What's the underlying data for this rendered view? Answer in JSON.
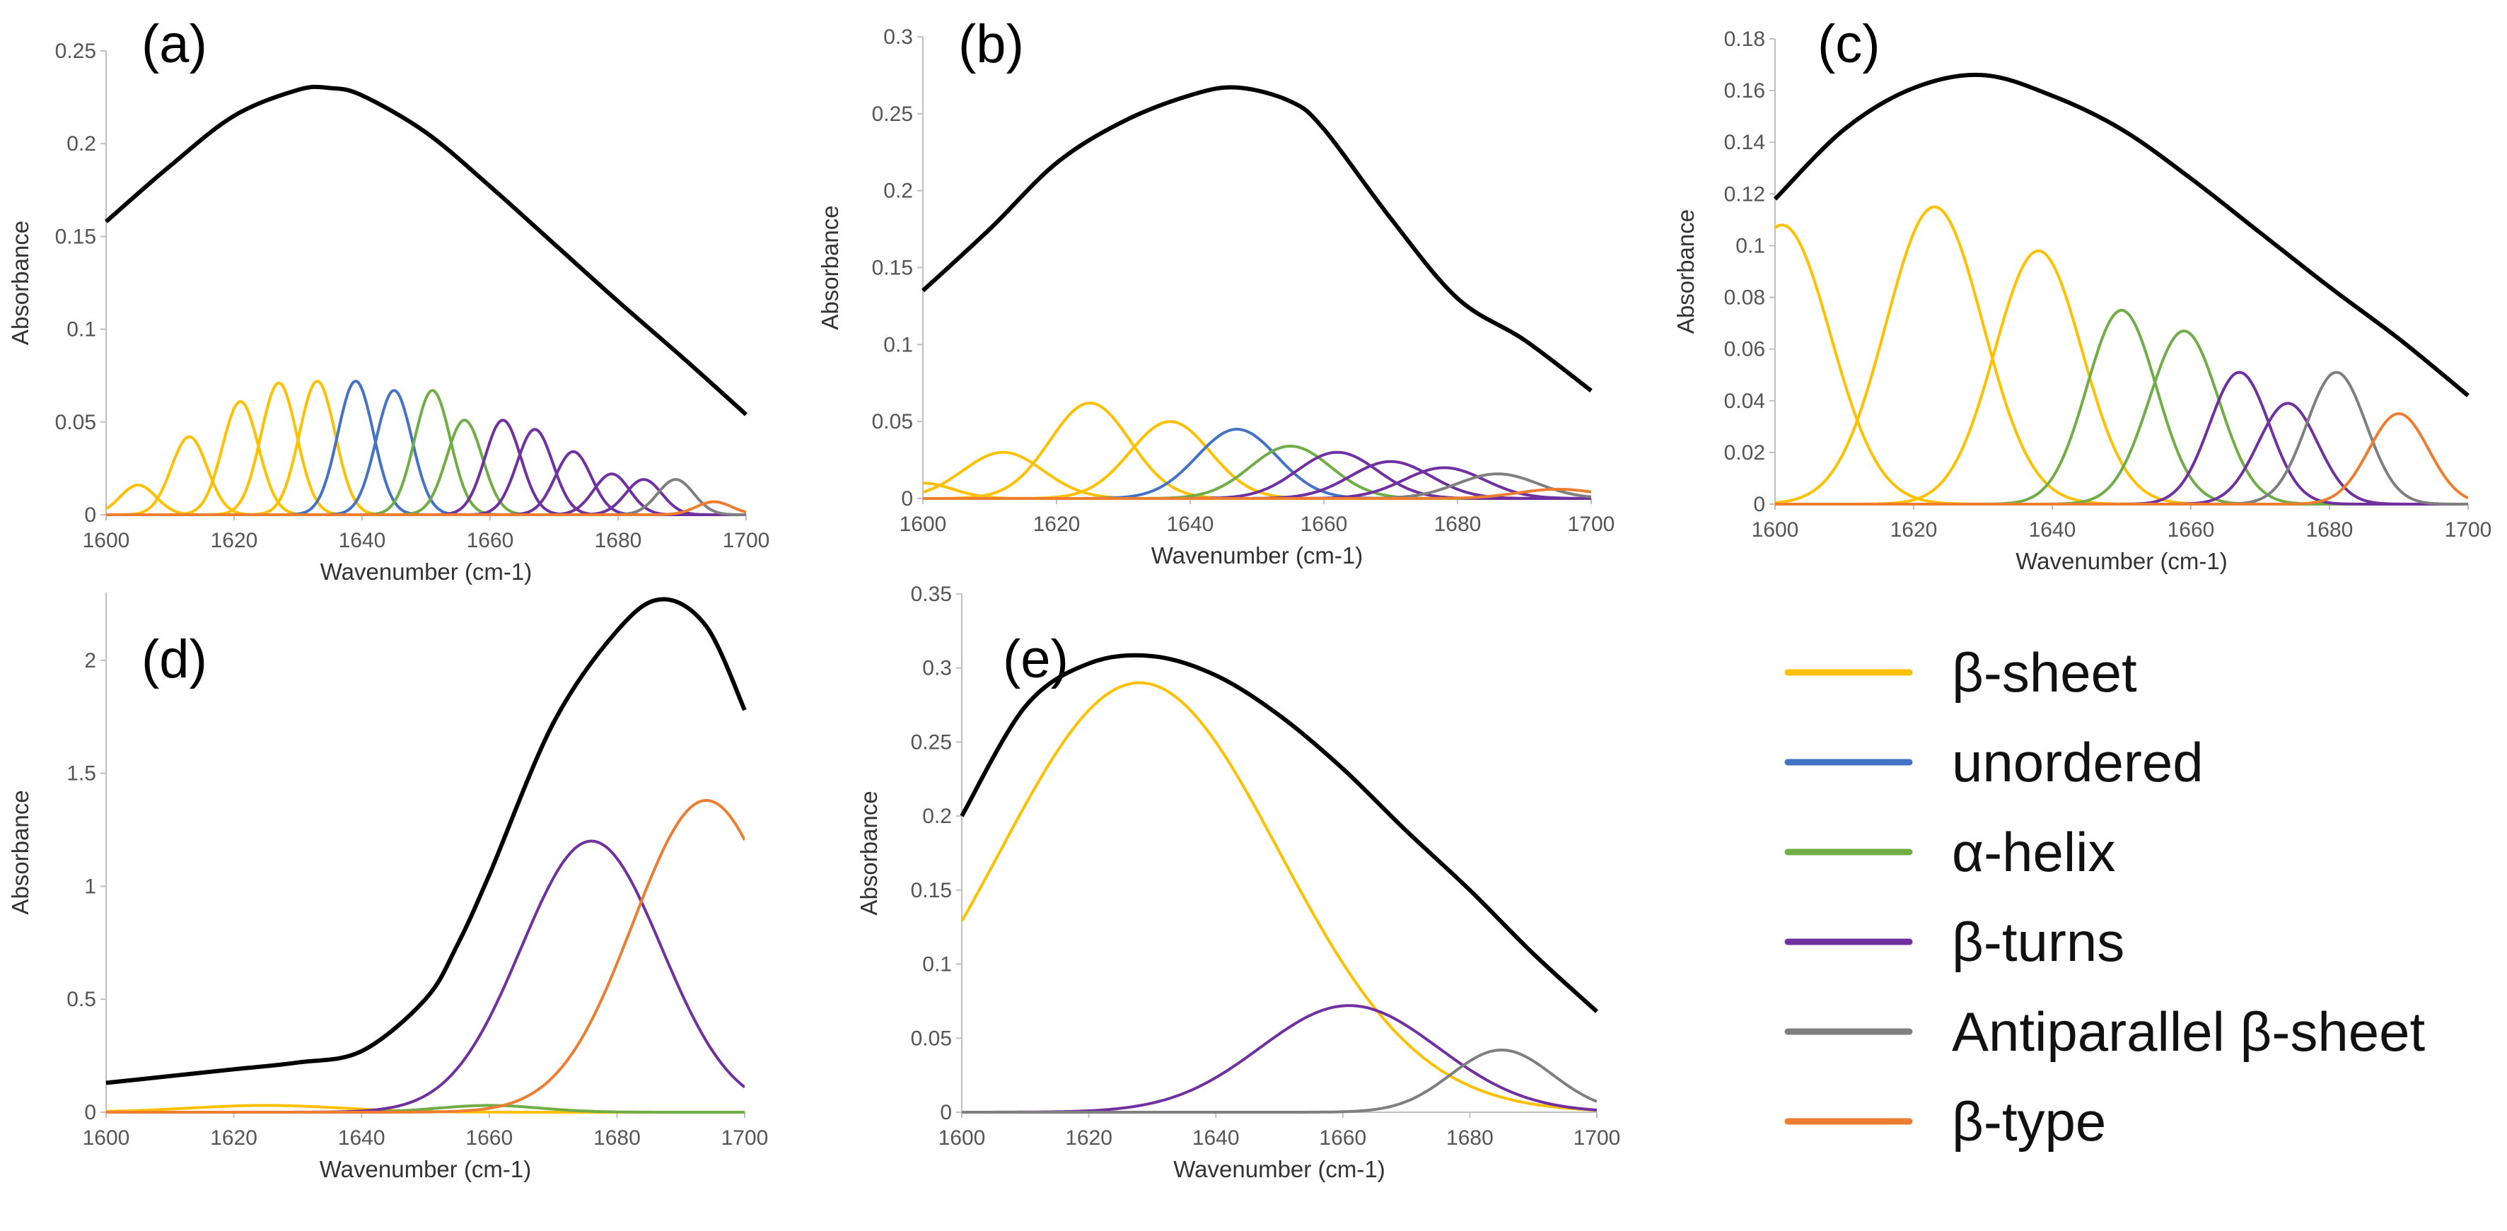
{
  "colors": {
    "beta_sheet": "#FFC000",
    "unordered": "#4472C4",
    "alpha_helix": "#70AD47",
    "beta_turns": "#7030A0",
    "antiparallel": "#7F7F7F",
    "beta_type": "#ED7D31",
    "total": "#000000"
  },
  "legend": {
    "items": [
      {
        "label": "β-sheet",
        "color_key": "beta_sheet"
      },
      {
        "label": "unordered",
        "color_key": "unordered"
      },
      {
        "label": "α-helix",
        "color_key": "alpha_helix"
      },
      {
        "label": "β-turns",
        "color_key": "beta_turns"
      },
      {
        "label": "Antiparallel β-sheet",
        "color_key": "antiparallel"
      },
      {
        "label": "β-type",
        "color_key": "beta_type"
      }
    ]
  },
  "chart_data": [
    {
      "type": "line",
      "panel": "(a)",
      "xlabel": "Wavenumber (cm-1)",
      "ylabel": "Absorbance",
      "xlim": [
        1600,
        1700
      ],
      "ylim": [
        0,
        0.25
      ],
      "xticks": [
        1600,
        1620,
        1640,
        1660,
        1680,
        1700
      ],
      "xtick_labels": [
        "1600",
        "1620",
        "1640",
        "1660",
        "1680",
        "1700"
      ],
      "yticks": [
        0,
        0.05,
        0.1,
        0.15,
        0.2,
        0.25
      ],
      "ytick_labels": [
        "0",
        "0.05",
        "0.1",
        "0.15",
        "0.2",
        "0.25"
      ],
      "total": {
        "x": [
          1600,
          1610,
          1620,
          1630,
          1635,
          1640,
          1650,
          1660,
          1670,
          1680,
          1690,
          1700
        ],
        "y": [
          0.158,
          0.188,
          0.215,
          0.229,
          0.23,
          0.226,
          0.206,
          0.177,
          0.146,
          0.115,
          0.085,
          0.054
        ]
      },
      "components": [
        {
          "type": "beta_sheet",
          "center": 1605,
          "height": 0.016,
          "width": 2.8
        },
        {
          "type": "beta_sheet",
          "center": 1613,
          "height": 0.042,
          "width": 2.8
        },
        {
          "type": "beta_sheet",
          "center": 1621,
          "height": 0.061,
          "width": 2.8
        },
        {
          "type": "beta_sheet",
          "center": 1627,
          "height": 0.071,
          "width": 2.8
        },
        {
          "type": "beta_sheet",
          "center": 1633,
          "height": 0.072,
          "width": 2.8
        },
        {
          "type": "unordered",
          "center": 1639,
          "height": 0.072,
          "width": 2.8
        },
        {
          "type": "unordered",
          "center": 1645,
          "height": 0.067,
          "width": 2.8
        },
        {
          "type": "alpha_helix",
          "center": 1651,
          "height": 0.067,
          "width": 2.8
        },
        {
          "type": "alpha_helix",
          "center": 1656,
          "height": 0.051,
          "width": 2.8
        },
        {
          "type": "beta_turns",
          "center": 1662,
          "height": 0.051,
          "width": 2.8
        },
        {
          "type": "beta_turns",
          "center": 1667,
          "height": 0.046,
          "width": 2.8
        },
        {
          "type": "beta_turns",
          "center": 1673,
          "height": 0.034,
          "width": 2.8
        },
        {
          "type": "beta_turns",
          "center": 1679,
          "height": 0.022,
          "width": 2.8
        },
        {
          "type": "beta_turns",
          "center": 1684,
          "height": 0.019,
          "width": 2.8
        },
        {
          "type": "antiparallel",
          "center": 1689,
          "height": 0.019,
          "width": 2.8
        },
        {
          "type": "beta_type",
          "center": 1695,
          "height": 0.007,
          "width": 2.8
        }
      ]
    },
    {
      "type": "line",
      "panel": "(b)",
      "xlabel": "Wavenumber (cm-1)",
      "ylabel": "Absorbance",
      "xlim": [
        1600,
        1700
      ],
      "ylim": [
        0,
        0.3
      ],
      "xticks": [
        1600,
        1620,
        1640,
        1660,
        1680,
        1700
      ],
      "xtick_labels": [
        "1600",
        "1620",
        "1640",
        "1660",
        "1680",
        "1700"
      ],
      "yticks": [
        0,
        0.05,
        0.1,
        0.15,
        0.2,
        0.25,
        0.3
      ],
      "ytick_labels": [
        "0",
        "0.05",
        "0.1",
        "0.15",
        "0.2",
        "0.25",
        "0.3"
      ],
      "total": {
        "x": [
          1600,
          1610,
          1620,
          1630,
          1640,
          1647,
          1655,
          1660,
          1670,
          1680,
          1690,
          1700
        ],
        "y": [
          0.135,
          0.175,
          0.218,
          0.245,
          0.262,
          0.267,
          0.258,
          0.24,
          0.182,
          0.13,
          0.103,
          0.07
        ]
      },
      "components": [
        {
          "type": "beta_sheet",
          "center": 1600,
          "height": 0.01,
          "width": 4.5
        },
        {
          "type": "beta_sheet",
          "center": 1612,
          "height": 0.03,
          "width": 6
        },
        {
          "type": "beta_sheet",
          "center": 1625,
          "height": 0.062,
          "width": 6
        },
        {
          "type": "beta_sheet",
          "center": 1637,
          "height": 0.05,
          "width": 6
        },
        {
          "type": "unordered",
          "center": 1647,
          "height": 0.045,
          "width": 6
        },
        {
          "type": "alpha_helix",
          "center": 1655,
          "height": 0.034,
          "width": 6
        },
        {
          "type": "beta_turns",
          "center": 1662,
          "height": 0.03,
          "width": 6
        },
        {
          "type": "beta_turns",
          "center": 1670,
          "height": 0.024,
          "width": 6
        },
        {
          "type": "beta_turns",
          "center": 1678,
          "height": 0.02,
          "width": 6
        },
        {
          "type": "antiparallel",
          "center": 1686,
          "height": 0.016,
          "width": 6
        },
        {
          "type": "beta_type",
          "center": 1695,
          "height": 0.006,
          "width": 6
        }
      ]
    },
    {
      "type": "line",
      "panel": "(c)",
      "xlabel": "Wavenumber (cm-1)",
      "ylabel": "Absorbance",
      "xlim": [
        1600,
        1700
      ],
      "ylim": [
        0,
        0.18
      ],
      "xticks": [
        1600,
        1620,
        1640,
        1660,
        1680,
        1700
      ],
      "xtick_labels": [
        "1600",
        "1620",
        "1640",
        "1660",
        "1680",
        "1700"
      ],
      "yticks": [
        0,
        0.02,
        0.04,
        0.06,
        0.08,
        0.1,
        0.12,
        0.14,
        0.16,
        0.18
      ],
      "ytick_labels": [
        "0",
        "0.02",
        "0.04",
        "0.06",
        "0.08",
        "0.1",
        "0.12",
        "0.14",
        "0.16",
        "0.18"
      ],
      "total": {
        "x": [
          1600,
          1610,
          1620,
          1630,
          1640,
          1650,
          1660,
          1670,
          1680,
          1690,
          1700
        ],
        "y": [
          0.118,
          0.145,
          0.161,
          0.166,
          0.158,
          0.145,
          0.126,
          0.105,
          0.084,
          0.064,
          0.042
        ]
      },
      "components": [
        {
          "type": "beta_sheet",
          "center": 1601,
          "height": 0.108,
          "width": 7
        },
        {
          "type": "beta_sheet",
          "center": 1623,
          "height": 0.115,
          "width": 7
        },
        {
          "type": "beta_sheet",
          "center": 1638,
          "height": 0.098,
          "width": 6.3
        },
        {
          "type": "alpha_helix",
          "center": 1650,
          "height": 0.075,
          "width": 5
        },
        {
          "type": "alpha_helix",
          "center": 1659,
          "height": 0.067,
          "width": 5
        },
        {
          "type": "beta_turns",
          "center": 1667,
          "height": 0.051,
          "width": 4.3
        },
        {
          "type": "beta_turns",
          "center": 1674,
          "height": 0.039,
          "width": 4.3
        },
        {
          "type": "antiparallel",
          "center": 1681,
          "height": 0.051,
          "width": 4.3
        },
        {
          "type": "beta_type",
          "center": 1690,
          "height": 0.035,
          "width": 4.3
        }
      ]
    },
    {
      "type": "line",
      "panel": "(d)",
      "xlabel": "Wavenumber (cm-1)",
      "ylabel": "Absorbance",
      "xlim": [
        1600,
        1700
      ],
      "ylim": [
        0,
        2.3
      ],
      "xticks": [
        1600,
        1620,
        1640,
        1660,
        1680,
        1700
      ],
      "xtick_labels": [
        "1600",
        "1620",
        "1640",
        "1660",
        "1680",
        "1700"
      ],
      "yticks": [
        0,
        0.5,
        1,
        1.5,
        2
      ],
      "ytick_labels": [
        "0",
        "0.5",
        "1",
        "1.5",
        "2"
      ],
      "total": {
        "x": [
          1600,
          1610,
          1620,
          1630,
          1640,
          1650,
          1655,
          1660,
          1670,
          1680,
          1687,
          1694,
          1700
        ],
        "y": [
          0.13,
          0.16,
          0.19,
          0.22,
          0.27,
          0.5,
          0.74,
          1.05,
          1.72,
          2.13,
          2.27,
          2.15,
          1.78
        ]
      },
      "components": [
        {
          "type": "beta_sheet",
          "center": 1625,
          "height": 0.03,
          "width": 12
        },
        {
          "type": "alpha_helix",
          "center": 1660,
          "height": 0.03,
          "width": 8
        },
        {
          "type": "beta_turns",
          "center": 1676,
          "height": 1.2,
          "width": 11
        },
        {
          "type": "beta_type",
          "center": 1694,
          "height": 1.38,
          "width": 11.5
        }
      ]
    },
    {
      "type": "line",
      "panel": "(e)",
      "xlabel": "Wavenumber (cm-1)",
      "ylabel": "Absorbance",
      "xlim": [
        1600,
        1700
      ],
      "ylim": [
        0,
        0.35
      ],
      "xticks": [
        1600,
        1620,
        1640,
        1660,
        1680,
        1700
      ],
      "xtick_labels": [
        "1600",
        "1620",
        "1640",
        "1660",
        "1680",
        "1700"
      ],
      "yticks": [
        0,
        0.05,
        0.1,
        0.15,
        0.2,
        0.25,
        0.3,
        0.35
      ],
      "ytick_labels": [
        "0",
        "0.05",
        "0.1",
        "0.15",
        "0.2",
        "0.25",
        "0.3",
        "0.35"
      ],
      "total": {
        "x": [
          1600,
          1610,
          1620,
          1630,
          1640,
          1650,
          1660,
          1670,
          1680,
          1690,
          1700
        ],
        "y": [
          0.2,
          0.274,
          0.303,
          0.308,
          0.295,
          0.268,
          0.232,
          0.19,
          0.15,
          0.107,
          0.068
        ]
      },
      "components": [
        {
          "type": "beta_sheet",
          "center": 1628,
          "height": 0.29,
          "width": 22
        },
        {
          "type": "beta_turns",
          "center": 1661,
          "height": 0.072,
          "width": 14
        },
        {
          "type": "antiparallel",
          "center": 1685,
          "height": 0.042,
          "width": 8
        }
      ]
    }
  ]
}
